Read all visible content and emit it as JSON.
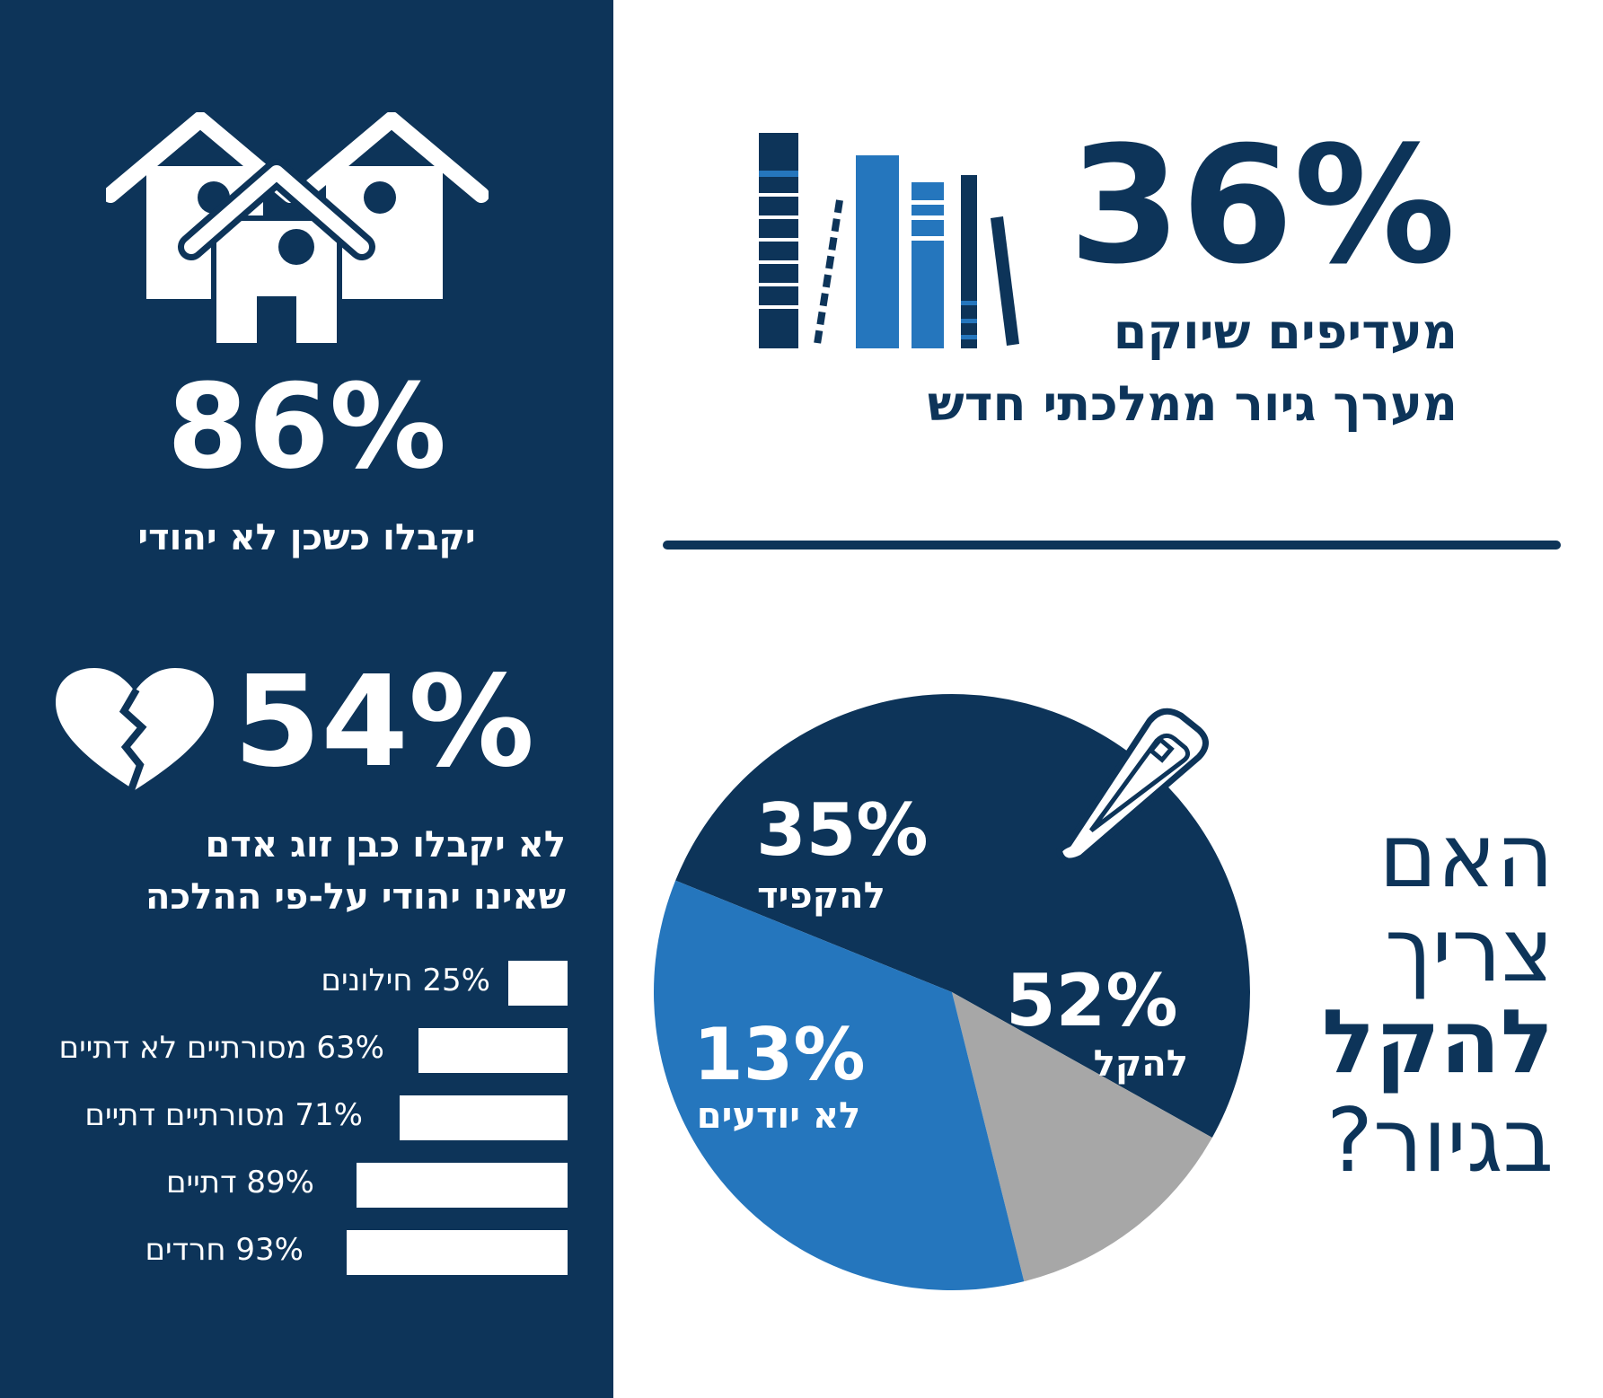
{
  "colors": {
    "navy": "#0d3459",
    "blue": "#2576bd",
    "gray": "#a7a7a7",
    "white": "#ffffff"
  },
  "neighbor": {
    "icon": "houses-icon",
    "percent": "86%",
    "caption": "יקבלו כשכן לא יהודי"
  },
  "spouse": {
    "icon": "broken-heart-icon",
    "percent": "54%",
    "caption_line1": "לא יקבלו כבן זוג אדם",
    "caption_line2": "שאינו יהודי על-פי ההלכה"
  },
  "reform": {
    "icon": "books-icon",
    "percent": "36%",
    "caption_line1": "מעדיפים שיוקם",
    "caption_line2": "מערך גיור ממלכתי חדש"
  },
  "question": {
    "icon": "hairclip-icon",
    "line1": "האם",
    "line2": "צריך",
    "line3": "להקל",
    "line4": "בגיור?"
  },
  "chart_data": [
    {
      "type": "bar",
      "orientation": "horizontal",
      "categories": [
        "חילונים",
        "מסורתיים לא דתיים",
        "מסורתיים דתיים",
        "דתיים",
        "חרדים"
      ],
      "values": [
        25,
        63,
        71,
        89,
        93
      ],
      "labels": [
        "25% חילונים",
        "63% מסורתיים לא דתיים",
        "71% מסורתיים דתיים",
        "89% דתיים",
        "93% חרדים"
      ]
    },
    {
      "type": "pie",
      "slices": [
        {
          "label": "להקל",
          "value": 52,
          "percent_label": "52%",
          "color": "#0d3459"
        },
        {
          "label": "לא יודעים",
          "value": 13,
          "percent_label": "13%",
          "color": "#a7a7a7"
        },
        {
          "label": "להקפיד",
          "value": 35,
          "percent_label": "35%",
          "color": "#2576bd"
        }
      ]
    }
  ]
}
